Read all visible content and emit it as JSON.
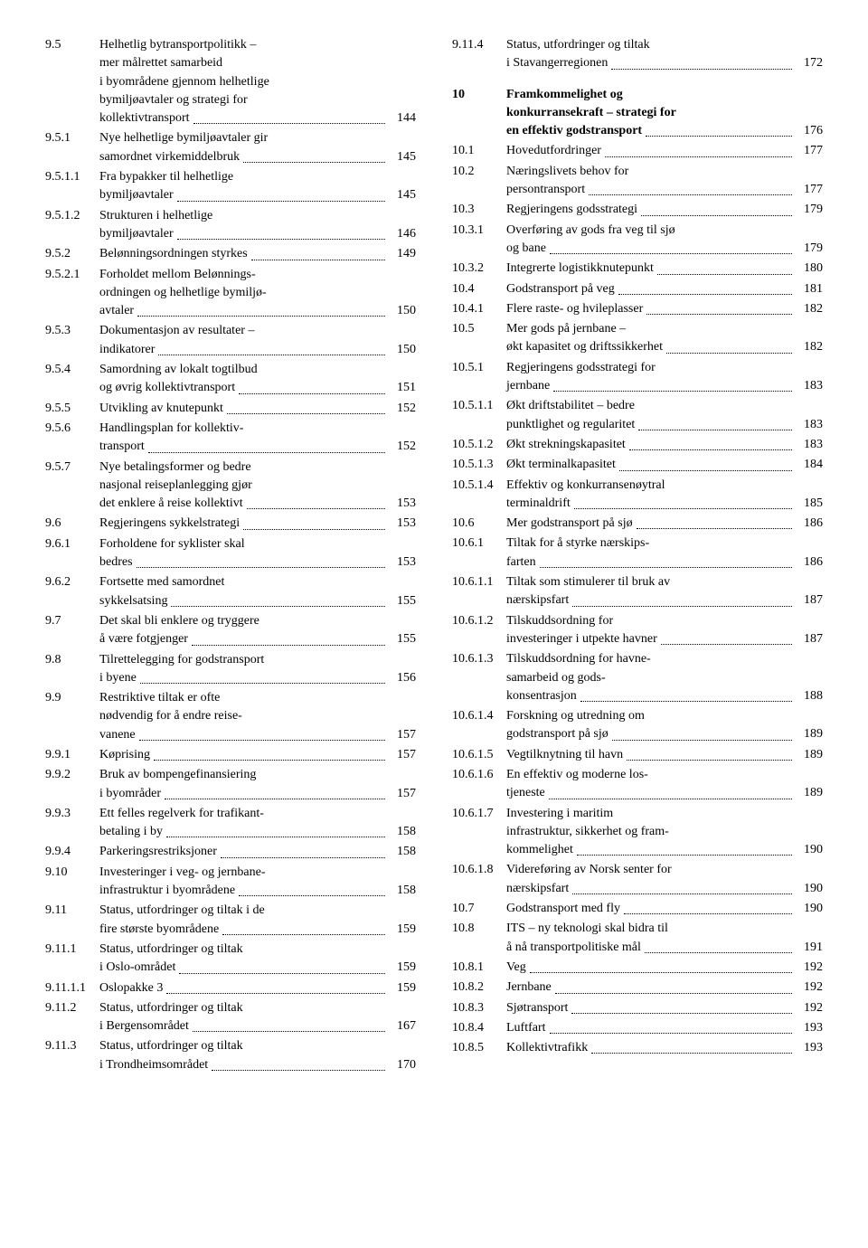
{
  "left": [
    {
      "num": "9.5",
      "lines": [
        "Helhetlig bytransportpolitikk –",
        "mer målrettet samarbeid",
        "i byområdene gjennom helhetlige",
        "bymiljøavtaler og strategi for"
      ],
      "last": "kollektivtransport",
      "page": "144"
    },
    {
      "num": "9.5.1",
      "lines": [
        "Nye helhetlige bymiljøavtaler gir"
      ],
      "last": "samordnet virkemiddelbruk",
      "page": "145"
    },
    {
      "num": "9.5.1.1",
      "lines": [
        "Fra bypakker til helhetlige"
      ],
      "last": "bymiljøavtaler",
      "page": "145"
    },
    {
      "num": "9.5.1.2",
      "lines": [
        "Strukturen i helhetlige"
      ],
      "last": "bymiljøavtaler",
      "page": "146"
    },
    {
      "num": "9.5.2",
      "lines": [],
      "last": "Belønningsordningen styrkes",
      "page": "149"
    },
    {
      "num": "9.5.2.1",
      "lines": [
        "Forholdet mellom Belønnings-",
        "ordningen og helhetlige bymiljø-"
      ],
      "last": "avtaler",
      "page": "150"
    },
    {
      "num": "9.5.3",
      "lines": [
        "Dokumentasjon av resultater –"
      ],
      "last": "indikatorer",
      "page": "150"
    },
    {
      "num": "9.5.4",
      "lines": [
        "Samordning av lokalt togtilbud"
      ],
      "last": "og øvrig kollektivtransport",
      "page": "151"
    },
    {
      "num": "9.5.5",
      "lines": [],
      "last": "Utvikling av knutepunkt",
      "page": "152"
    },
    {
      "num": "9.5.6",
      "lines": [
        "Handlingsplan for kollektiv-"
      ],
      "last": "transport",
      "page": "152"
    },
    {
      "num": "9.5.7",
      "lines": [
        "Nye betalingsformer og bedre",
        "nasjonal reiseplanlegging gjør"
      ],
      "last": "det enklere å reise kollektivt",
      "page": "153"
    },
    {
      "num": "9.6",
      "lines": [],
      "last": "Regjeringens sykkelstrategi",
      "page": "153"
    },
    {
      "num": "9.6.1",
      "lines": [
        "Forholdene for syklister skal"
      ],
      "last": "bedres",
      "page": "153"
    },
    {
      "num": "9.6.2",
      "lines": [
        "Fortsette med samordnet"
      ],
      "last": "sykkelsatsing",
      "page": "155"
    },
    {
      "num": "9.7",
      "lines": [
        "Det skal bli enklere og tryggere"
      ],
      "last": "å være fotgjenger",
      "page": "155"
    },
    {
      "num": "9.8",
      "lines": [
        "Tilrettelegging for godstransport"
      ],
      "last": "i byene",
      "page": "156"
    },
    {
      "num": "9.9",
      "lines": [
        "Restriktive tiltak er ofte",
        "nødvendig for å endre reise-"
      ],
      "last": "vanene",
      "page": "157"
    },
    {
      "num": "9.9.1",
      "lines": [],
      "last": "Køprising",
      "page": "157"
    },
    {
      "num": "9.9.2",
      "lines": [
        "Bruk av bompengefinansiering"
      ],
      "last": "i byområder",
      "page": "157"
    },
    {
      "num": "9.9.3",
      "lines": [
        "Ett felles regelverk for trafikant-"
      ],
      "last": "betaling i by",
      "page": "158"
    },
    {
      "num": "9.9.4",
      "lines": [],
      "last": "Parkeringsrestriksjoner",
      "page": "158"
    },
    {
      "num": "9.10",
      "lines": [
        "Investeringer i veg- og jernbane-"
      ],
      "last": "infrastruktur i byområdene",
      "page": "158"
    },
    {
      "num": "9.11",
      "lines": [
        "Status, utfordringer og tiltak i de"
      ],
      "last": "fire største byområdene",
      "page": "159"
    },
    {
      "num": "9.11.1",
      "lines": [
        "Status, utfordringer og tiltak"
      ],
      "last": "i Oslo-området",
      "page": "159"
    },
    {
      "num": "9.11.1.1",
      "lines": [],
      "last": "Oslopakke 3",
      "page": "159"
    },
    {
      "num": "9.11.2",
      "lines": [
        "Status, utfordringer og tiltak"
      ],
      "last": "i Bergensområdet",
      "page": "167"
    },
    {
      "num": "9.11.3",
      "lines": [
        "Status, utfordringer og tiltak"
      ],
      "last": "i Trondheimsområdet",
      "page": "170"
    }
  ],
  "right": [
    {
      "num": "9.11.4",
      "lines": [
        "Status, utfordringer og tiltak"
      ],
      "last": "i Stavangerregionen",
      "page": "172"
    },
    {
      "spacer": true
    },
    {
      "num": "10",
      "bold": true,
      "lines": [
        "Framkommelighet og",
        "konkurransekraft – strategi for"
      ],
      "last": "en effektiv godstransport",
      "page": "176"
    },
    {
      "num": "10.1",
      "lines": [],
      "last": "Hovedutfordringer",
      "page": "177"
    },
    {
      "num": "10.2",
      "lines": [
        "Næringslivets behov for"
      ],
      "last": "persontransport",
      "page": "177"
    },
    {
      "num": "10.3",
      "lines": [],
      "last": "Regjeringens godsstrategi",
      "page": "179"
    },
    {
      "num": "10.3.1",
      "lines": [
        "Overføring av gods fra veg til sjø"
      ],
      "last": "og bane",
      "page": "179"
    },
    {
      "num": "10.3.2",
      "lines": [],
      "last": "Integrerte logistikknutepunkt",
      "page": "180"
    },
    {
      "num": "10.4",
      "lines": [],
      "last": "Godstransport på veg",
      "page": "181"
    },
    {
      "num": "10.4.1",
      "lines": [],
      "last": "Flere raste- og hvileplasser",
      "page": "182"
    },
    {
      "num": "10.5",
      "lines": [
        "Mer gods på jernbane –"
      ],
      "last": "økt kapasitet og driftssikkerhet",
      "page": "182"
    },
    {
      "num": "10.5.1",
      "lines": [
        "Regjeringens godsstrategi for"
      ],
      "last": "jernbane",
      "page": "183"
    },
    {
      "num": "10.5.1.1",
      "lines": [
        "Økt driftstabilitet – bedre"
      ],
      "last": "punktlighet og regularitet",
      "page": "183"
    },
    {
      "num": "10.5.1.2",
      "lines": [],
      "last": "Økt strekningskapasitet",
      "page": "183"
    },
    {
      "num": "10.5.1.3",
      "lines": [],
      "last": "Økt terminalkapasitet",
      "page": "184"
    },
    {
      "num": "10.5.1.4",
      "lines": [
        "Effektiv og konkurransenøytral"
      ],
      "last": "terminaldrift",
      "page": "185"
    },
    {
      "num": "10.6",
      "lines": [],
      "last": "Mer godstransport på sjø",
      "page": "186"
    },
    {
      "num": "10.6.1",
      "lines": [
        "Tiltak for å styrke nærskips-"
      ],
      "last": "farten",
      "page": "186"
    },
    {
      "num": "10.6.1.1",
      "lines": [
        "Tiltak som stimulerer til bruk av"
      ],
      "last": "nærskipsfart",
      "page": "187"
    },
    {
      "num": "10.6.1.2",
      "lines": [
        "Tilskuddsordning for"
      ],
      "last": "investeringer i utpekte havner",
      "page": "187"
    },
    {
      "num": "10.6.1.3",
      "lines": [
        "Tilskuddsordning for havne-",
        "samarbeid og gods-"
      ],
      "last": "konsentrasjon",
      "page": "188"
    },
    {
      "num": "10.6.1.4",
      "lines": [
        "Forskning og utredning om"
      ],
      "last": "godstransport på sjø",
      "page": "189"
    },
    {
      "num": "10.6.1.5",
      "lines": [],
      "last": "Vegtilknytning til havn",
      "page": "189"
    },
    {
      "num": "10.6.1.6",
      "lines": [
        "En effektiv og moderne los-"
      ],
      "last": "tjeneste",
      "page": "189"
    },
    {
      "num": "10.6.1.7",
      "lines": [
        "Investering i maritim",
        "infrastruktur, sikkerhet og fram-"
      ],
      "last": "kommelighet",
      "page": "190"
    },
    {
      "num": "10.6.1.8",
      "lines": [
        "Videreføring av Norsk senter for"
      ],
      "last": "nærskipsfart",
      "page": "190"
    },
    {
      "num": "10.7",
      "lines": [],
      "last": "Godstransport med fly",
      "page": "190"
    },
    {
      "num": "10.8",
      "lines": [
        "ITS – ny teknologi skal bidra til"
      ],
      "last": "å nå transportpolitiske mål",
      "page": "191"
    },
    {
      "num": "10.8.1",
      "lines": [],
      "last": "Veg",
      "page": "192"
    },
    {
      "num": "10.8.2",
      "lines": [],
      "last": "Jernbane",
      "page": "192"
    },
    {
      "num": "10.8.3",
      "lines": [],
      "last": "Sjøtransport",
      "page": "192"
    },
    {
      "num": "10.8.4",
      "lines": [],
      "last": "Luftfart",
      "page": "193"
    },
    {
      "num": "10.8.5",
      "lines": [],
      "last": "Kollektivtrafikk",
      "page": "193"
    }
  ]
}
